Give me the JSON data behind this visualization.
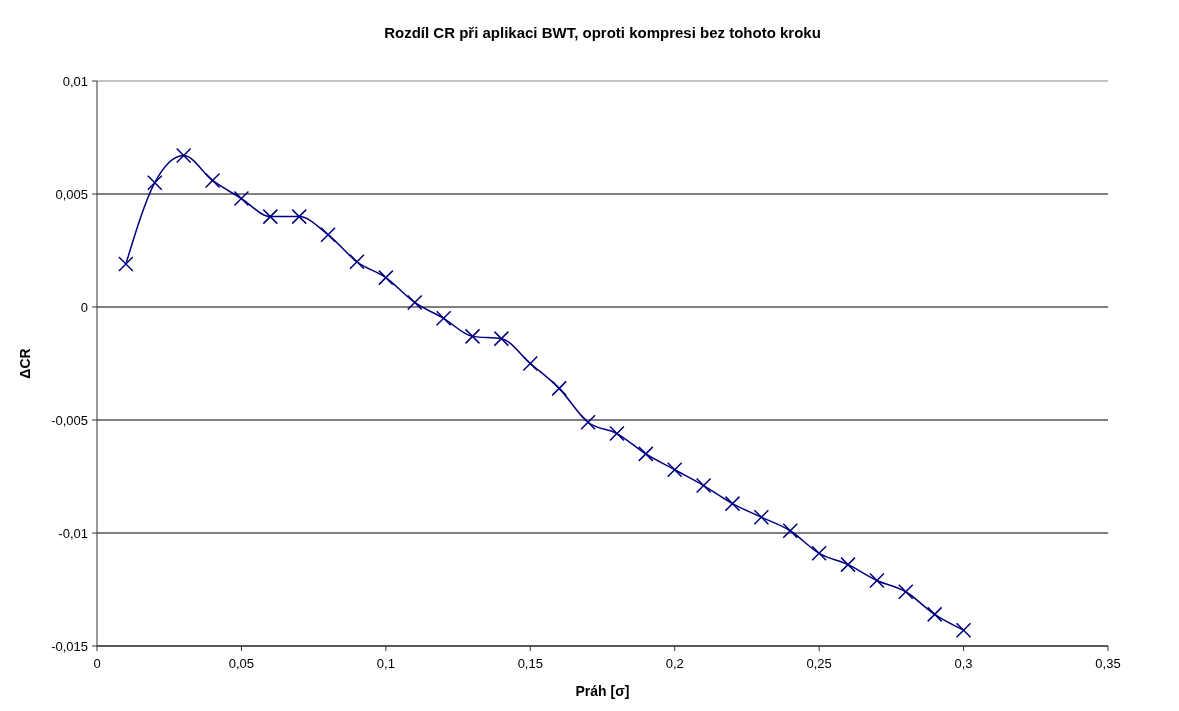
{
  "chart_data": {
    "type": "line",
    "title": "Rozdíl CR při aplikaci BWT, oproti kompresi bez tohoto kroku",
    "xlabel": "Práh [σ]",
    "ylabel": "ΔCR",
    "x": [
      0.01,
      0.02,
      0.03,
      0.04,
      0.05,
      0.06,
      0.07,
      0.08,
      0.09,
      0.1,
      0.11,
      0.12,
      0.13,
      0.14,
      0.15,
      0.16,
      0.17,
      0.18,
      0.19,
      0.2,
      0.21,
      0.22,
      0.23,
      0.24,
      0.25,
      0.26,
      0.27,
      0.28,
      0.29,
      0.3
    ],
    "series": [
      {
        "color": "#000080",
        "values": [
          0.0019,
          0.0055,
          0.0067,
          0.0056,
          0.0048,
          0.004,
          0.004,
          0.0032,
          0.002,
          0.0013,
          0.0002,
          -0.0005,
          -0.0013,
          -0.0014,
          -0.0025,
          -0.0036,
          -0.0051,
          -0.0056,
          -0.0065,
          -0.0072,
          -0.0079,
          -0.0087,
          -0.0093,
          -0.0099,
          -0.0109,
          -0.0114,
          -0.0121,
          -0.0126,
          -0.0136,
          -0.0143
        ]
      }
    ],
    "xlim": [
      0,
      0.35
    ],
    "ylim": [
      -0.015,
      0.01
    ],
    "xticks": [
      0,
      {
        "value": 0.05,
        "label": "0,05"
      },
      {
        "value": 0.1,
        "label": "0,1"
      },
      {
        "value": 0.15,
        "label": "0,15"
      },
      {
        "value": 0.2,
        "label": "0,2"
      },
      {
        "value": 0.25,
        "label": "0,25"
      },
      {
        "value": 0.3,
        "label": "0,3"
      },
      {
        "value": 0.35,
        "label": "0,35"
      }
    ],
    "yticks": [
      {
        "value": -0.015,
        "label": "-0,015"
      },
      {
        "value": -0.01,
        "label": "-0,01"
      },
      {
        "value": -0.005,
        "label": "-0,005"
      },
      0,
      {
        "value": 0.005,
        "label": "0,005"
      },
      {
        "value": 0.01,
        "label": "0,01"
      }
    ],
    "grid": "y",
    "marker": "cross",
    "line_style": "solid"
  }
}
